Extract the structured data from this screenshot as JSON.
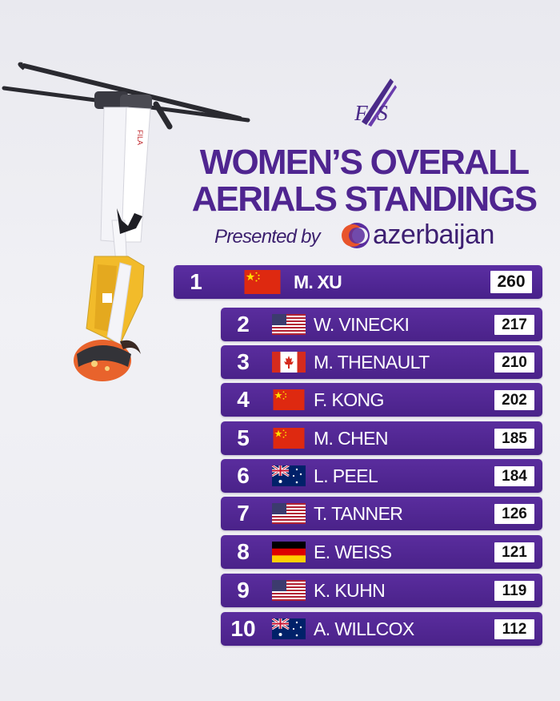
{
  "header": {
    "logo_text": "F/S",
    "title_line1": "WOMEN’S OVERALL",
    "title_line2": "AERIALS STANDINGS",
    "presented_by": "Presented by",
    "sponsor": "azerbaijan"
  },
  "standings": [
    {
      "rank": "1",
      "name": "M. XU",
      "points": "260",
      "flag": "china"
    },
    {
      "rank": "2",
      "name": "W. VINECKI",
      "points": "217",
      "flag": "usa"
    },
    {
      "rank": "3",
      "name": "M. THENAULT",
      "points": "210",
      "flag": "canada"
    },
    {
      "rank": "4",
      "name": "F. KONG",
      "points": "202",
      "flag": "china"
    },
    {
      "rank": "5",
      "name": "M. CHEN",
      "points": "185",
      "flag": "china"
    },
    {
      "rank": "6",
      "name": "L. PEEL",
      "points": "184",
      "flag": "australia"
    },
    {
      "rank": "7",
      "name": "T. TANNER",
      "points": "126",
      "flag": "usa"
    },
    {
      "rank": "8",
      "name": "E. WEISS",
      "points": "121",
      "flag": "germany"
    },
    {
      "rank": "9",
      "name": "K. KUHN",
      "points": "119",
      "flag": "usa"
    },
    {
      "rank": "10",
      "name": "A. WILLCOX",
      "points": "112",
      "flag": "australia"
    }
  ],
  "colors": {
    "accent": "#4f2590",
    "row_bg": "#4a2289",
    "sponsor_orange": "#e8542b",
    "sponsor_purple": "#5a2d9e"
  }
}
